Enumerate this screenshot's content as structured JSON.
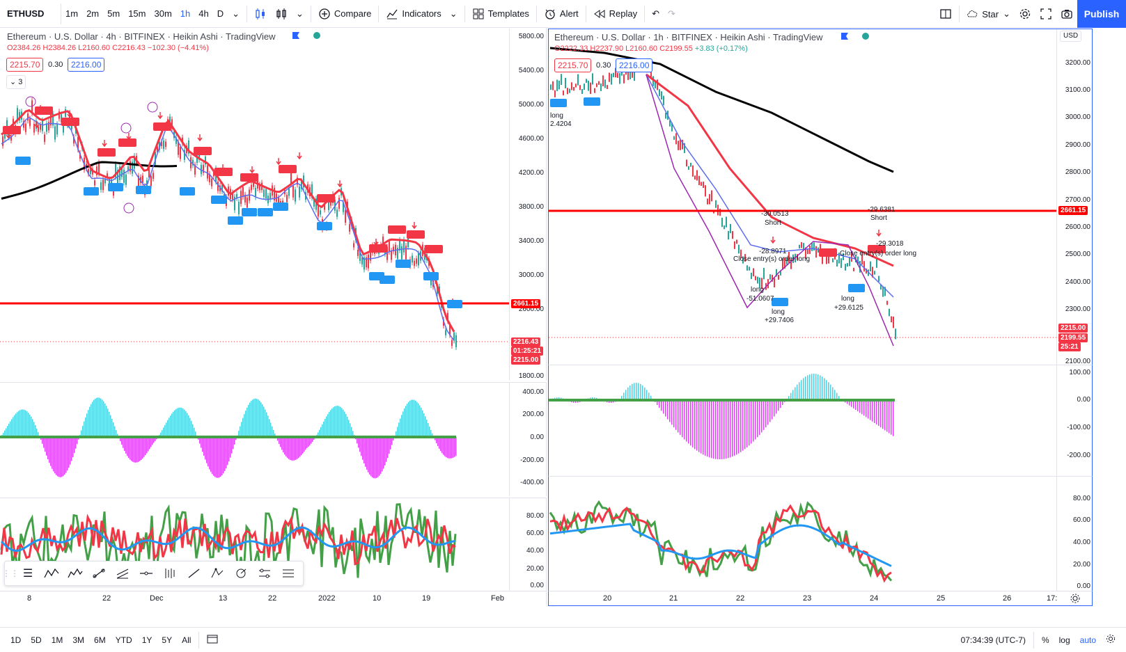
{
  "toolbar": {
    "symbol": "ETHUSD",
    "intervals": [
      "1m",
      "2m",
      "5m",
      "15m",
      "30m",
      "1h",
      "4h",
      "D"
    ],
    "active_interval": "1h",
    "compare": "Compare",
    "indicators": "Indicators",
    "templates": "Templates",
    "alert": "Alert",
    "replay": "Replay",
    "star": "Star",
    "publish": "Publish"
  },
  "left_chart": {
    "title": "Ethereum · U.S. Dollar · 4h · BITFINEX · Heikin Ashi · TradingView",
    "ohlc": {
      "o": "O2384.26",
      "h": "H2384.26",
      "l": "L2160.60",
      "c": "C2216.43",
      "chg": "−102.30 (−4.41%)"
    },
    "bid": "2215.70",
    "spread": "0.30",
    "ask": "2216.00",
    "indicator_count": "3",
    "price_axis": [
      "5800.00",
      "5400.00",
      "5000.00",
      "4600.00",
      "4200.00",
      "3800.00",
      "3400.00",
      "3000.00",
      "2600.00",
      "2216.43",
      "1800.00"
    ],
    "hline_label": "2661.15",
    "last_price": "2216.43",
    "countdown": "01:25:21",
    "ask_tag": "2215.00",
    "macd_axis": [
      "400.00",
      "200.00",
      "0.00",
      "-200.00",
      "-400.00"
    ],
    "osc_axis": [
      "80.00",
      "60.00",
      "40.00",
      "20.00",
      "0.00"
    ],
    "time_axis": [
      "8",
      "22",
      "Dec",
      "13",
      "22",
      "2022",
      "10",
      "19",
      "Feb"
    ]
  },
  "right_chart": {
    "title": "Ethereum · U.S. Dollar · 1h · BITFINEX · Heikin Ashi · TradingView",
    "ohlc": {
      "o": "O2222.33",
      "h": "H2237.90",
      "l": "L2160.60",
      "c": "C2199.55",
      "chg": "+3.83 (+0.17%)"
    },
    "bid": "2215.70",
    "spread": "0.30",
    "ask": "2216.00",
    "currency": "USD",
    "price_axis": [
      "3200.00",
      "3100.00",
      "3000.00",
      "2900.00",
      "2800.00",
      "2700.00",
      "2600.00",
      "2500.00",
      "2400.00",
      "2300.00",
      "2100.00"
    ],
    "hline_label": "2661.15",
    "last_price": "2215.00",
    "close_price": "2199.55",
    "countdown": "25:21",
    "macd_axis": [
      "100.00",
      "0.00",
      "-100.00",
      "-200.00"
    ],
    "osc_axis": [
      "80.00",
      "60.00",
      "40.00",
      "20.00",
      "0.00"
    ],
    "time_axis": [
      "20",
      "21",
      "22",
      "23",
      "24",
      "25",
      "26",
      "17:"
    ],
    "annotations": [
      "-30.0513",
      "Short",
      "-29.6381",
      "Short",
      "-28.8971",
      "Close entry(s) order long",
      "-29.3018",
      "Close entry(s) order long",
      "long",
      "-51.0607",
      "long",
      "+29.7406",
      "long",
      "+29.6125",
      "long",
      "2.4204"
    ]
  },
  "bottom": {
    "ranges": [
      "1D",
      "5D",
      "1M",
      "3M",
      "6M",
      "YTD",
      "1Y",
      "5Y",
      "All"
    ],
    "clock": "07:34:39 (UTC-7)",
    "percent": "%",
    "log": "log",
    "auto": "auto"
  },
  "colors": {
    "accent": "#2962ff",
    "red": "#f23645",
    "green": "#26a69a",
    "hline": "#ff0000"
  }
}
